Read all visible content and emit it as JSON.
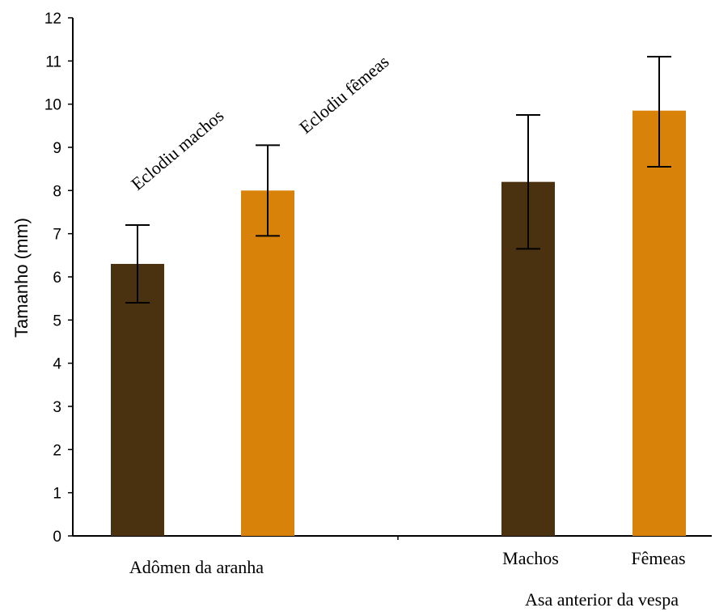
{
  "chart_data": {
    "type": "bar",
    "title": "",
    "ylabel": "Tamanho (mm)",
    "ylim": [
      0,
      12
    ],
    "yticks": [
      0,
      1,
      2,
      3,
      4,
      5,
      6,
      7,
      8,
      9,
      10,
      11,
      12
    ],
    "grid": false,
    "series_colors": {
      "machos": "#4a3210",
      "femeas": "#d9820a"
    },
    "bars": [
      {
        "category": "Eclodiu machos",
        "group": "Adômen da aranha",
        "value": 6.3,
        "err_low": 5.4,
        "err_high": 7.2,
        "color": "#4a3210"
      },
      {
        "category": "Eclodiu fêmeas",
        "group": "Adômen da aranha",
        "value": 8.0,
        "err_low": 6.95,
        "err_high": 9.05,
        "color": "#d9820a"
      },
      {
        "category": "Machos",
        "group": "Asa anterior da vespa",
        "value": 8.2,
        "err_low": 6.65,
        "err_high": 9.75,
        "color": "#4a3210"
      },
      {
        "category": "Fêmeas",
        "group": "Asa anterior da vespa",
        "value": 9.85,
        "err_low": 8.55,
        "err_high": 11.1,
        "color": "#d9820a"
      }
    ],
    "group_labels": [
      "Adômen da aranha",
      "Asa anterior da vespa"
    ]
  }
}
